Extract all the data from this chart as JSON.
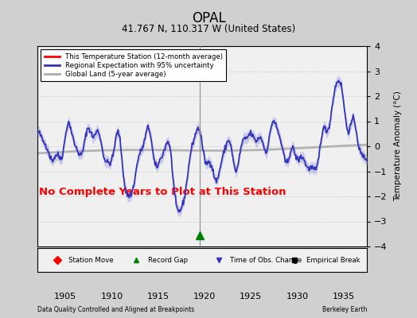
{
  "title": "OPAL",
  "subtitle": "41.767 N, 110.317 W (United States)",
  "xlabel_left": "Data Quality Controlled and Aligned at Breakpoints",
  "xlabel_right": "Berkeley Earth",
  "ylabel": "Temperature Anomaly (°C)",
  "xlim": [
    1902.0,
    1937.5
  ],
  "ylim": [
    -4,
    4
  ],
  "yticks": [
    -4,
    -3,
    -2,
    -1,
    0,
    1,
    2,
    3,
    4
  ],
  "xticks": [
    1905,
    1910,
    1915,
    1920,
    1925,
    1930,
    1935
  ],
  "vertical_line_x": 1919.5,
  "annotation_text": "No Complete Years to Plot at This Station",
  "annotation_color": "red",
  "green_triangle_x": 1919.5,
  "green_triangle_y": -3.55,
  "fig_bg": "#d0d0d0",
  "plot_bg": "#f0f0f0",
  "regional_color": "#3333bb",
  "regional_fill_color": "#9999dd",
  "global_land_color": "#aaaaaa",
  "legend_labels": [
    "This Temperature Station (12-month average)",
    "Regional Expectation with 95% uncertainty",
    "Global Land (5-year average)"
  ],
  "bottom_labels": [
    "Station Move",
    "Record Gap",
    "Time of Obs. Change",
    "Empirical Break"
  ],
  "bottom_markers": [
    "D",
    "^",
    "v",
    "s"
  ],
  "bottom_colors": [
    "red",
    "green",
    "#3333bb",
    "black"
  ]
}
